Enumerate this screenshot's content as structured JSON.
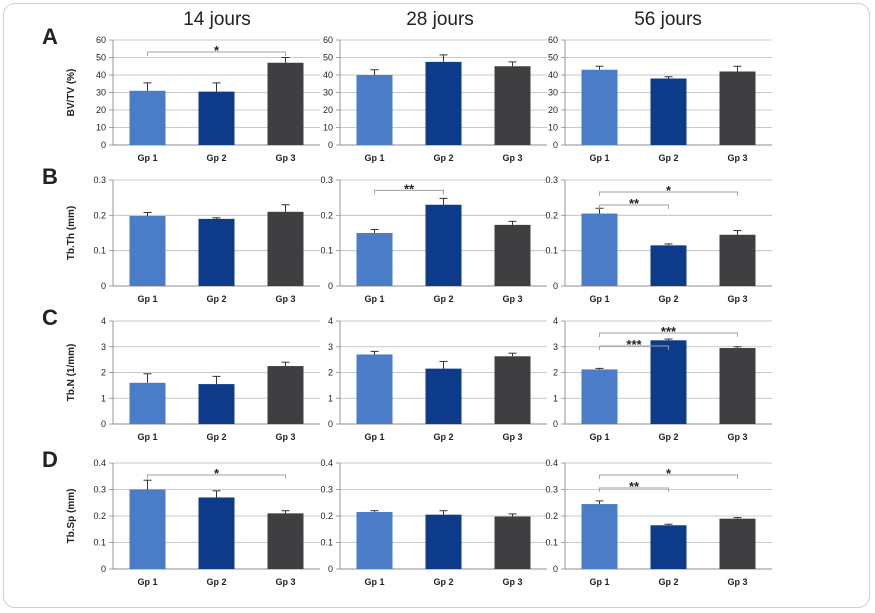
{
  "colors": {
    "group1": "#4a7cc7",
    "group2": "#0e3a8a",
    "group3": "#3f3f42",
    "grid": "#b8b8b8",
    "axis": "#8c8c8c",
    "errorbar": "#333333",
    "bracket": "#a0a0a0"
  },
  "columns": [
    "14 jours",
    "28 jours",
    "56 jours"
  ],
  "rows": [
    {
      "letter": "A",
      "ylabel": "BV/TV (%)",
      "ylim": [
        0,
        60
      ],
      "ticks": [
        "0",
        "10",
        "20",
        "30",
        "40",
        "50",
        "60"
      ]
    },
    {
      "letter": "B",
      "ylabel": "Tb.Th (mm)",
      "ylim": [
        0,
        0.3
      ],
      "ticks": [
        "0",
        "0.1",
        "0.2",
        "0.3"
      ]
    },
    {
      "letter": "C",
      "ylabel": "Tb.N (1/mm)",
      "ylim": [
        0,
        4
      ],
      "ticks": [
        "0",
        "1",
        "2",
        "3",
        "4"
      ]
    },
    {
      "letter": "D",
      "ylabel": "Tb.Sp (mm)",
      "ylim": [
        0,
        0.4
      ],
      "ticks": [
        "0",
        "0.1",
        "0.2",
        "0.3",
        "0.4"
      ]
    }
  ],
  "chart_data": {
    "type": "bar",
    "categories": [
      "Gp 1",
      "Gp 2",
      "Gp 3"
    ],
    "grid": true,
    "panels": [
      {
        "row": 0,
        "col": 0,
        "values": [
          31,
          30.5,
          47
        ],
        "errors": [
          4.5,
          5,
          3
        ],
        "significance": [
          {
            "from": 0,
            "to": 2,
            "label": "*"
          }
        ]
      },
      {
        "row": 0,
        "col": 1,
        "values": [
          40,
          47.5,
          45
        ],
        "errors": [
          3,
          4,
          2.5
        ],
        "significance": []
      },
      {
        "row": 0,
        "col": 2,
        "values": [
          43,
          38,
          42
        ],
        "errors": [
          2,
          1,
          3
        ],
        "significance": []
      },
      {
        "row": 1,
        "col": 0,
        "values": [
          0.198,
          0.19,
          0.21
        ],
        "errors": [
          0.01,
          0.003,
          0.02
        ],
        "significance": []
      },
      {
        "row": 1,
        "col": 1,
        "values": [
          0.15,
          0.23,
          0.173
        ],
        "errors": [
          0.01,
          0.018,
          0.01
        ],
        "significance": [
          {
            "from": 0,
            "to": 1,
            "label": "**"
          }
        ]
      },
      {
        "row": 1,
        "col": 2,
        "values": [
          0.205,
          0.115,
          0.145
        ],
        "errors": [
          0.015,
          0.004,
          0.012
        ],
        "significance": [
          {
            "from": 0,
            "to": 1,
            "label": "**"
          },
          {
            "from": 0,
            "to": 2,
            "label": "*"
          }
        ]
      },
      {
        "row": 2,
        "col": 0,
        "values": [
          1.6,
          1.55,
          2.25
        ],
        "errors": [
          0.35,
          0.3,
          0.15
        ],
        "significance": []
      },
      {
        "row": 2,
        "col": 1,
        "values": [
          2.7,
          2.15,
          2.63
        ],
        "errors": [
          0.12,
          0.28,
          0.12
        ],
        "significance": []
      },
      {
        "row": 2,
        "col": 2,
        "values": [
          2.12,
          3.25,
          2.95
        ],
        "errors": [
          0.04,
          0.05,
          0.05
        ],
        "significance": [
          {
            "from": 0,
            "to": 1,
            "label": "***"
          },
          {
            "from": 0,
            "to": 2,
            "label": "***"
          }
        ]
      },
      {
        "row": 3,
        "col": 0,
        "values": [
          0.3,
          0.27,
          0.21
        ],
        "errors": [
          0.035,
          0.025,
          0.01
        ],
        "significance": [
          {
            "from": 0,
            "to": 2,
            "label": "*"
          }
        ]
      },
      {
        "row": 3,
        "col": 1,
        "values": [
          0.215,
          0.205,
          0.198
        ],
        "errors": [
          0.005,
          0.015,
          0.01
        ],
        "significance": []
      },
      {
        "row": 3,
        "col": 2,
        "values": [
          0.245,
          0.165,
          0.19
        ],
        "errors": [
          0.012,
          0.004,
          0.004
        ],
        "significance": [
          {
            "from": 0,
            "to": 1,
            "label": "**"
          },
          {
            "from": 0,
            "to": 2,
            "label": "*"
          }
        ]
      }
    ]
  }
}
